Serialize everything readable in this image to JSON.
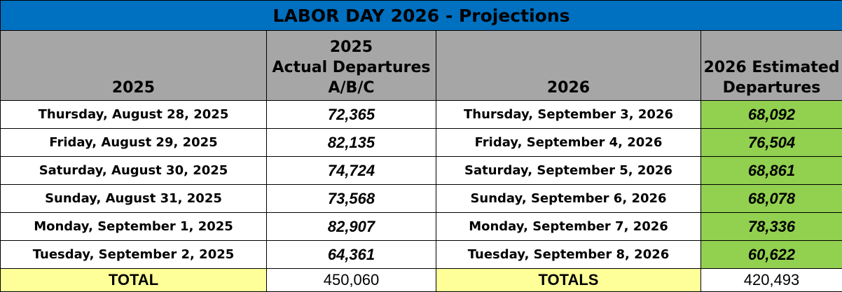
{
  "table": {
    "title": "LABOR DAY 2026 - Projections",
    "headers": [
      [
        "2025"
      ],
      [
        "2025",
        "Actual Departures",
        "A/B/C"
      ],
      [
        "2026"
      ],
      [
        "2026 Estimated",
        "Departures"
      ]
    ],
    "rows": [
      [
        "Thursday, August 28, 2025",
        "72,365",
        "Thursday, September 3, 2026",
        "68,092"
      ],
      [
        "Friday, August 29, 2025",
        "82,135",
        "Friday, September 4, 2026",
        "76,504"
      ],
      [
        "Saturday, August 30, 2025",
        "74,724",
        "Saturday, September 5, 2026",
        "68,861"
      ],
      [
        "Sunday, August 31, 2025",
        "73,568",
        "Sunday, September 6, 2026",
        "68,078"
      ],
      [
        "Monday, September 1, 2025",
        "82,907",
        "Monday, September 7, 2026",
        "78,336"
      ],
      [
        "Tuesday, September 2, 2025",
        "64,361",
        "Tuesday, September 8, 2026",
        "60,622"
      ]
    ],
    "totals": [
      "TOTAL",
      "450,060",
      "TOTALS",
      "420,493"
    ]
  }
}
